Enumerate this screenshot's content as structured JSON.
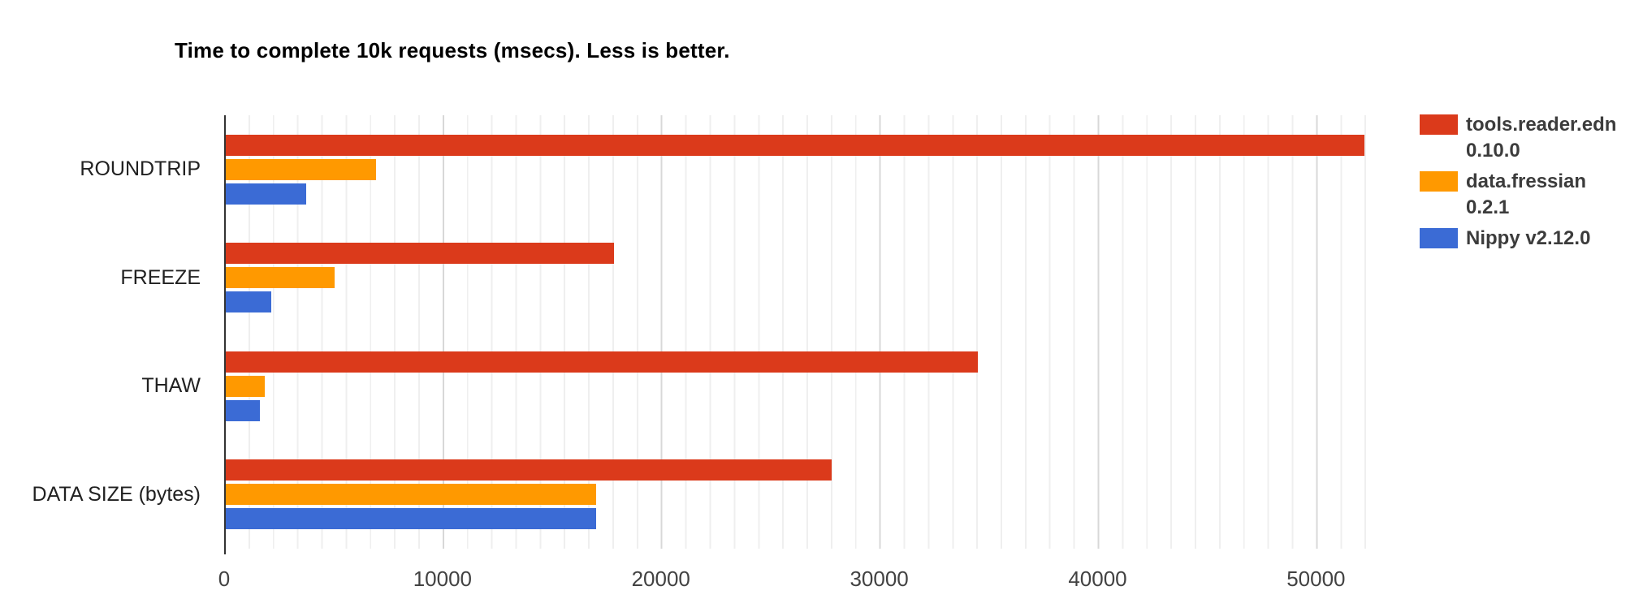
{
  "chart_data": {
    "type": "bar",
    "orientation": "horizontal",
    "title": "Time to complete 10k requests (msecs). Less is better.",
    "categories": [
      "ROUNDTRIP",
      "FREEZE",
      "THAW",
      "DATA SIZE (bytes)"
    ],
    "series": [
      {
        "name": "tools.reader.edn 0.10.0",
        "color": "#db3a1b",
        "values": [
          52200,
          17800,
          34500,
          27800
        ]
      },
      {
        "name": "data.fressian 0.2.1",
        "color": "#ff9900",
        "values": [
          6900,
          5000,
          1800,
          17000
        ]
      },
      {
        "name": "Nippy v2.12.0",
        "color": "#3b6bd5",
        "values": [
          3700,
          2100,
          1550,
          17000
        ]
      }
    ],
    "x_ticks": [
      0,
      10000,
      20000,
      30000,
      40000,
      50000
    ],
    "xlim": [
      0,
      53333
    ],
    "minor_grid_step": 1111,
    "grid": true,
    "legend_position": "right",
    "axis_color": "#333333",
    "minor_grid_color": "#efefef",
    "major_grid_color": "#d8d8d8"
  }
}
